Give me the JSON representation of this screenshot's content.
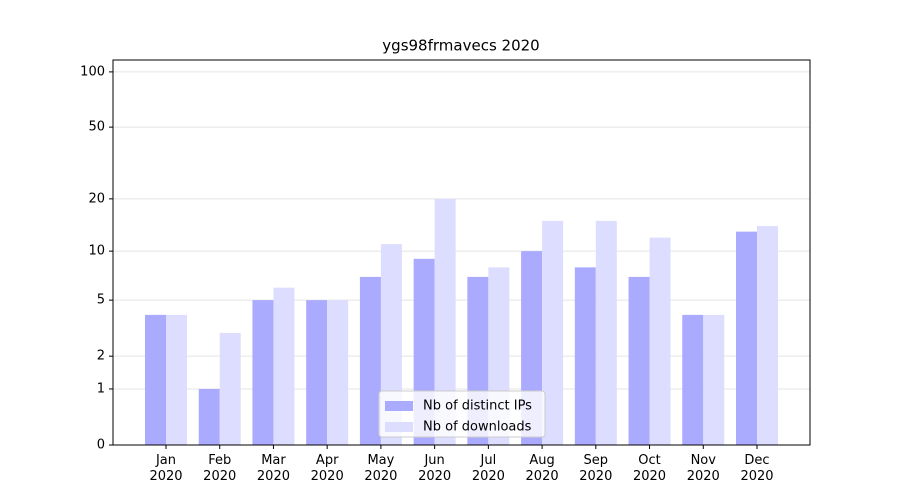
{
  "chart_data": {
    "type": "bar",
    "title": "ygs98frmavecs 2020",
    "categories": [
      "Jan\n2020",
      "Feb\n2020",
      "Mar\n2020",
      "Apr\n2020",
      "May\n2020",
      "Jun\n2020",
      "Jul\n2020",
      "Aug\n2020",
      "Sep\n2020",
      "Oct\n2020",
      "Nov\n2020",
      "Dec\n2020"
    ],
    "series": [
      {
        "name": "Nb of distinct IPs",
        "color": "#aaaaff",
        "values": [
          4,
          1,
          5,
          5,
          7,
          9,
          7,
          10,
          8,
          7,
          4,
          13
        ]
      },
      {
        "name": "Nb of downloads",
        "color": "#ddddff",
        "values": [
          4,
          3,
          6,
          5,
          11,
          20,
          8,
          15,
          15,
          12,
          4,
          14
        ]
      }
    ],
    "yscale": "log1p",
    "ylim": [
      0,
      116
    ],
    "yticks": [
      0,
      1,
      2,
      5,
      10,
      20,
      50,
      100
    ],
    "grid": true,
    "legend": "lower center"
  }
}
